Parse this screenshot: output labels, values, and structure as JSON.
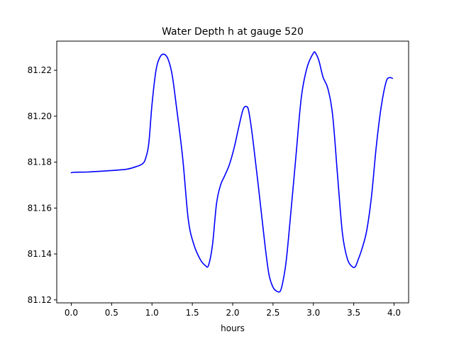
{
  "chart_data": {
    "type": "line",
    "title": "Water Depth h at gauge 520",
    "xlabel": "hours",
    "ylabel": "",
    "xlim": [
      -0.18,
      4.18
    ],
    "ylim": [
      81.1187,
      81.2327
    ],
    "xticks": [
      0.0,
      0.5,
      1.0,
      1.5,
      2.0,
      2.5,
      3.0,
      3.5,
      4.0
    ],
    "xtick_labels": [
      "0.0",
      "0.5",
      "1.0",
      "1.5",
      "2.0",
      "2.5",
      "3.0",
      "3.5",
      "4.0"
    ],
    "yticks": [
      81.12,
      81.14,
      81.16,
      81.18,
      81.2,
      81.22
    ],
    "ytick_labels": [
      "81.12",
      "81.14",
      "81.16",
      "81.18",
      "81.20",
      "81.22"
    ],
    "grid": false,
    "series": [
      {
        "color": "#0000ff",
        "x": [
          0.0,
          0.05,
          0.2,
          0.4,
          0.6,
          0.7,
          0.8,
          0.88,
          0.92,
          0.96,
          1.0,
          1.05,
          1.1,
          1.15,
          1.2,
          1.25,
          1.3,
          1.38,
          1.45,
          1.52,
          1.6,
          1.66,
          1.7,
          1.75,
          1.8,
          1.85,
          1.9,
          1.96,
          2.02,
          2.08,
          2.13,
          2.17,
          2.2,
          2.25,
          2.32,
          2.4,
          2.45,
          2.5,
          2.55,
          2.59,
          2.62,
          2.66,
          2.7,
          2.78,
          2.85,
          2.92,
          3.0,
          3.03,
          3.07,
          3.12,
          3.18,
          3.24,
          3.3,
          3.36,
          3.42,
          3.48,
          3.52,
          3.56,
          3.6,
          3.66,
          3.72,
          3.78,
          3.84,
          3.9,
          3.94,
          3.98
        ],
        "y": [
          81.1754,
          81.1756,
          81.1757,
          81.1761,
          81.1766,
          81.177,
          81.178,
          81.1792,
          81.1815,
          81.188,
          81.205,
          81.22,
          81.2258,
          81.227,
          81.2248,
          81.218,
          81.205,
          81.182,
          81.155,
          81.144,
          81.1375,
          81.135,
          81.135,
          81.144,
          81.162,
          81.17,
          81.174,
          81.179,
          81.1865,
          81.196,
          81.203,
          81.2042,
          81.202,
          81.19,
          81.169,
          81.144,
          81.131,
          81.1255,
          81.1237,
          81.1238,
          81.1275,
          81.136,
          81.15,
          81.181,
          81.208,
          81.221,
          81.2275,
          81.2273,
          81.224,
          81.217,
          81.212,
          81.2,
          81.174,
          81.149,
          81.138,
          81.1345,
          81.1345,
          81.138,
          81.142,
          81.15,
          81.165,
          81.187,
          81.204,
          81.2148,
          81.2168,
          81.2165
        ]
      }
    ]
  }
}
